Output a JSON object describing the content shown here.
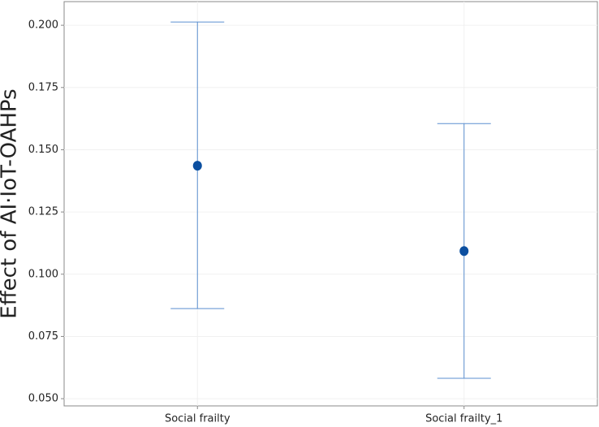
{
  "chart_data": {
    "type": "errorbar",
    "ylabel": "Effect of AI·IoT-OAHPs",
    "categories": [
      "Social frailty",
      "Social frailty_1"
    ],
    "series": [
      {
        "color": "#0b4fa0",
        "errorbar_color": "#5b8fd0",
        "values": [
          0.1436,
          0.1093
        ],
        "lower": [
          0.0862,
          0.0582
        ],
        "upper": [
          0.2013,
          0.1605
        ]
      }
    ],
    "ylim": [
      0.0471,
      0.2095
    ],
    "yticks": [
      {
        "value": 0.05,
        "label": "0.050"
      },
      {
        "value": 0.075,
        "label": "0.075"
      },
      {
        "value": 0.1,
        "label": "0.100"
      },
      {
        "value": 0.125,
        "label": "0.125"
      },
      {
        "value": 0.15,
        "label": "0.150"
      },
      {
        "value": 0.175,
        "label": "0.175"
      },
      {
        "value": 0.2,
        "label": "0.200"
      }
    ],
    "grid": true
  }
}
